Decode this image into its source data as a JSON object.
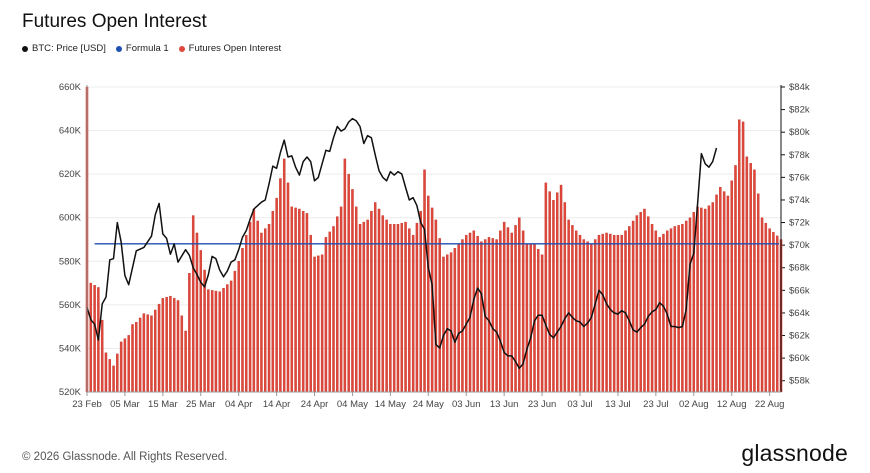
{
  "chart_data": {
    "type": "bar",
    "title": "Futures Open Interest",
    "legend_position": "top-left",
    "colors": {
      "price": "#111111",
      "formula": "#1f4fb0",
      "oi": "#e0473b",
      "oi_stroke": "#c43a2e"
    },
    "series": [
      {
        "name": "BTC: Price [USD]",
        "kind": "line",
        "axis": "right"
      },
      {
        "name": "Formula 1",
        "kind": "line",
        "axis": "left",
        "value": 588000
      },
      {
        "name": "Futures Open Interest",
        "kind": "bar",
        "axis": "left"
      }
    ],
    "x_tick_labels": [
      "23 Feb",
      "05 Mar",
      "15 Mar",
      "25 Mar",
      "04 Apr",
      "14 Apr",
      "24 Apr",
      "04 May",
      "14 May",
      "24 May",
      "03 Jun",
      "13 Jun",
      "23 Jun",
      "03 Jul",
      "13 Jul",
      "23 Jul",
      "02 Aug",
      "12 Aug",
      "22 Aug"
    ],
    "x_range_days": [
      0,
      183
    ],
    "y_left": {
      "min": 520000,
      "max": 660000,
      "ticks": [
        "520K",
        "540K",
        "560K",
        "580K",
        "600K",
        "620K",
        "640K",
        "660K"
      ]
    },
    "y_right": {
      "min": 57000,
      "max": 84000,
      "ticks": [
        "$58k",
        "$60k",
        "$62k",
        "$64k",
        "$66k",
        "$68k",
        "$70k",
        "$72k",
        "$74k",
        "$76k",
        "$78k",
        "$80k",
        "$82k",
        "$84k"
      ]
    },
    "open_interest_x_days": [
      0,
      183
    ],
    "open_interest_anchors": [
      [
        0,
        660000
      ],
      [
        1,
        570000
      ],
      [
        3,
        568000
      ],
      [
        5,
        538000
      ],
      [
        7,
        532000
      ],
      [
        9,
        543000
      ],
      [
        11,
        546000
      ],
      [
        12,
        551000
      ],
      [
        13,
        552000
      ],
      [
        15,
        556000
      ],
      [
        17,
        555000
      ],
      [
        20,
        563000
      ],
      [
        22,
        564000
      ],
      [
        24,
        562000
      ],
      [
        26,
        548000
      ],
      [
        28,
        601000
      ],
      [
        30,
        585000
      ],
      [
        32,
        567000
      ],
      [
        35,
        566000
      ],
      [
        38,
        571000
      ],
      [
        40,
        580000
      ],
      [
        42,
        592000
      ],
      [
        44,
        604000
      ],
      [
        46,
        593000
      ],
      [
        48,
        597000
      ],
      [
        50,
        609000
      ],
      [
        52,
        627000
      ],
      [
        54,
        605000
      ],
      [
        56,
        604000
      ],
      [
        58,
        602000
      ],
      [
        60,
        582000
      ],
      [
        62,
        583000
      ],
      [
        63,
        591000
      ],
      [
        65,
        596000
      ],
      [
        67,
        605000
      ],
      [
        68,
        627000
      ],
      [
        70,
        613000
      ],
      [
        72,
        597000
      ],
      [
        74,
        599000
      ],
      [
        76,
        607000
      ],
      [
        78,
        601000
      ],
      [
        80,
        597000
      ],
      [
        82,
        597000
      ],
      [
        84,
        598000
      ],
      [
        86,
        592000
      ],
      [
        88,
        603000
      ],
      [
        89,
        622000
      ],
      [
        90,
        610000
      ],
      [
        92,
        599000
      ],
      [
        94,
        582000
      ],
      [
        96,
        584000
      ],
      [
        98,
        588000
      ],
      [
        100,
        592000
      ],
      [
        102,
        594000
      ],
      [
        104,
        589000
      ],
      [
        106,
        591000
      ],
      [
        108,
        590000
      ],
      [
        110,
        598000
      ],
      [
        112,
        593000
      ],
      [
        114,
        600000
      ],
      [
        116,
        588000
      ],
      [
        118,
        588000
      ],
      [
        120,
        583000
      ],
      [
        121,
        616000
      ],
      [
        123,
        608000
      ],
      [
        125,
        615000
      ],
      [
        127,
        599000
      ],
      [
        129,
        594000
      ],
      [
        131,
        590000
      ],
      [
        133,
        588000
      ],
      [
        135,
        592000
      ],
      [
        137,
        593000
      ],
      [
        139,
        592000
      ],
      [
        141,
        592000
      ],
      [
        143,
        596000
      ],
      [
        145,
        601000
      ],
      [
        147,
        604000
      ],
      [
        149,
        597000
      ],
      [
        151,
        591000
      ],
      [
        153,
        594000
      ],
      [
        155,
        596000
      ],
      [
        157,
        597000
      ],
      [
        159,
        600000
      ],
      [
        161,
        605000
      ],
      [
        163,
        604000
      ],
      [
        165,
        607000
      ],
      [
        167,
        614000
      ],
      [
        169,
        610000
      ],
      [
        171,
        624000
      ],
      [
        172,
        645000
      ],
      [
        173,
        644000
      ],
      [
        174,
        628000
      ],
      [
        176,
        622000
      ],
      [
        178,
        600000
      ],
      [
        180,
        595000
      ],
      [
        183,
        590000
      ]
    ],
    "btc_price_anchors": [
      [
        0,
        64500
      ],
      [
        1,
        63400
      ],
      [
        2,
        63000
      ],
      [
        3,
        61600
      ],
      [
        4,
        64800
      ],
      [
        5,
        65400
      ],
      [
        6,
        68700
      ],
      [
        7,
        68800
      ],
      [
        8,
        72000
      ],
      [
        9,
        70300
      ],
      [
        10,
        67300
      ],
      [
        11,
        66500
      ],
      [
        12,
        68000
      ],
      [
        13,
        69500
      ],
      [
        15,
        69800
      ],
      [
        17,
        70800
      ],
      [
        18,
        72700
      ],
      [
        19,
        73700
      ],
      [
        20,
        71000
      ],
      [
        21,
        70600
      ],
      [
        22,
        69200
      ],
      [
        23,
        70100
      ],
      [
        24,
        68500
      ],
      [
        26,
        69600
      ],
      [
        27,
        69100
      ],
      [
        28,
        68000
      ],
      [
        29,
        67400
      ],
      [
        30,
        66700
      ],
      [
        31,
        66300
      ],
      [
        32,
        67400
      ],
      [
        33,
        69000
      ],
      [
        34,
        68800
      ],
      [
        35,
        67800
      ],
      [
        36,
        67200
      ],
      [
        37,
        67700
      ],
      [
        38,
        68500
      ],
      [
        39,
        68700
      ],
      [
        40,
        69600
      ],
      [
        41,
        70700
      ],
      [
        42,
        71300
      ],
      [
        43,
        72300
      ],
      [
        44,
        73200
      ],
      [
        45,
        73500
      ],
      [
        46,
        73800
      ],
      [
        47,
        74000
      ],
      [
        48,
        75400
      ],
      [
        49,
        77000
      ],
      [
        50,
        76800
      ],
      [
        51,
        78200
      ],
      [
        52,
        79300
      ],
      [
        53,
        77800
      ],
      [
        54,
        77900
      ],
      [
        55,
        76900
      ],
      [
        56,
        76200
      ],
      [
        57,
        77400
      ],
      [
        58,
        77800
      ],
      [
        59,
        77400
      ],
      [
        60,
        75700
      ],
      [
        61,
        76000
      ],
      [
        62,
        77200
      ],
      [
        63,
        78400
      ],
      [
        64,
        78300
      ],
      [
        65,
        79500
      ],
      [
        66,
        80500
      ],
      [
        67,
        80100
      ],
      [
        68,
        80300
      ],
      [
        69,
        80900
      ],
      [
        70,
        81200
      ],
      [
        71,
        81000
      ],
      [
        72,
        80500
      ],
      [
        73,
        79000
      ],
      [
        74,
        79700
      ],
      [
        75,
        79500
      ],
      [
        76,
        78000
      ],
      [
        77,
        76600
      ],
      [
        78,
        76000
      ],
      [
        79,
        75700
      ],
      [
        80,
        76500
      ],
      [
        81,
        76200
      ],
      [
        82,
        76500
      ],
      [
        83,
        76300
      ],
      [
        84,
        75100
      ],
      [
        85,
        74000
      ],
      [
        86,
        74200
      ],
      [
        87,
        73500
      ],
      [
        88,
        72000
      ],
      [
        89,
        71400
      ],
      [
        90,
        68000
      ],
      [
        91,
        66500
      ],
      [
        92,
        61200
      ],
      [
        93,
        60900
      ],
      [
        94,
        62000
      ],
      [
        95,
        62600
      ],
      [
        96,
        62400
      ],
      [
        97,
        61400
      ],
      [
        98,
        62200
      ],
      [
        99,
        62400
      ],
      [
        100,
        63000
      ],
      [
        101,
        63600
      ],
      [
        102,
        65200
      ],
      [
        103,
        66200
      ],
      [
        104,
        65700
      ],
      [
        105,
        63700
      ],
      [
        106,
        63300
      ],
      [
        107,
        62600
      ],
      [
        108,
        62300
      ],
      [
        109,
        61500
      ],
      [
        110,
        60500
      ],
      [
        111,
        60200
      ],
      [
        112,
        60200
      ],
      [
        113,
        59700
      ],
      [
        114,
        59100
      ],
      [
        115,
        59500
      ],
      [
        116,
        60800
      ],
      [
        117,
        61800
      ],
      [
        118,
        63300
      ],
      [
        119,
        63800
      ],
      [
        120,
        63800
      ],
      [
        121,
        62900
      ],
      [
        122,
        62100
      ],
      [
        123,
        61800
      ],
      [
        124,
        62300
      ],
      [
        125,
        62800
      ],
      [
        126,
        63500
      ],
      [
        127,
        64000
      ],
      [
        128,
        63600
      ],
      [
        129,
        63300
      ],
      [
        130,
        63200
      ],
      [
        131,
        62800
      ],
      [
        132,
        63100
      ],
      [
        133,
        63600
      ],
      [
        134,
        64800
      ],
      [
        135,
        66000
      ],
      [
        136,
        65600
      ],
      [
        137,
        64800
      ],
      [
        138,
        64300
      ],
      [
        139,
        64000
      ],
      [
        140,
        63900
      ],
      [
        141,
        64200
      ],
      [
        142,
        64000
      ],
      [
        143,
        63300
      ],
      [
        144,
        62500
      ],
      [
        145,
        62300
      ],
      [
        146,
        62700
      ],
      [
        147,
        63000
      ],
      [
        148,
        63700
      ],
      [
        149,
        64100
      ],
      [
        150,
        64300
      ],
      [
        151,
        64900
      ],
      [
        152,
        64600
      ],
      [
        153,
        63900
      ],
      [
        154,
        62800
      ],
      [
        155,
        62800
      ],
      [
        156,
        62700
      ],
      [
        157,
        62800
      ],
      [
        158,
        64300
      ],
      [
        159,
        68300
      ],
      [
        160,
        69300
      ],
      [
        161,
        73700
      ],
      [
        162,
        78100
      ],
      [
        163,
        77200
      ],
      [
        164,
        76900
      ],
      [
        165,
        77400
      ],
      [
        166,
        78600
      ]
    ]
  },
  "footer": {
    "copyright": "© 2026 Glassnode. All Rights Reserved.",
    "brand": "glassnode"
  }
}
